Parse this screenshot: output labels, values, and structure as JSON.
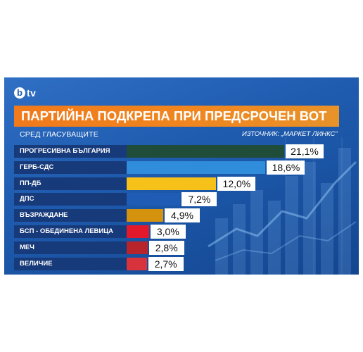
{
  "logo": {
    "b": "b",
    "tv": "tv"
  },
  "title": "ПАРТИЙНА ПОДКРЕПА ПРИ ПРЕДСРОЧЕН ВОТ",
  "subtitle": "СРЕД ГЛАСУВАЩИТЕ",
  "source": "ИЗТОЧНИК: „МАРКЕТ ЛИНКС“",
  "chart_data": {
    "type": "bar",
    "orientation": "horizontal",
    "title": "ПАРТИЙНА ПОДКРЕПА ПРИ ПРЕДСРОЧЕН ВОТ",
    "subtitle": "СРЕД ГЛАСУВАЩИТЕ",
    "xlim": [
      0,
      21.1
    ],
    "categories": [
      "ПРОГРЕСИВНА БЪЛГАРИЯ",
      "ГЕРБ-СДС",
      "ПП-ДБ",
      "ДПС",
      "ВЪЗРАЖДАНЕ",
      "БСП - ОБЕДИНЕНА ЛЕВИЦА",
      "МЕЧ",
      "ВЕЛИЧИЕ"
    ],
    "values": [
      21.1,
      18.6,
      12.0,
      7.2,
      4.9,
      3.0,
      2.8,
      2.7
    ],
    "value_labels": [
      "21,1%",
      "18,6%",
      "12,0%",
      "7,2%",
      "4,9%",
      "3,0%",
      "2,8%",
      "2,7%"
    ],
    "colors": [
      "#1f4d3a",
      "#2f8ddc",
      "#f6c21a",
      "#1f5cb5",
      "#d4920e",
      "#e3182a",
      "#b8242c",
      "#d8323c"
    ]
  }
}
